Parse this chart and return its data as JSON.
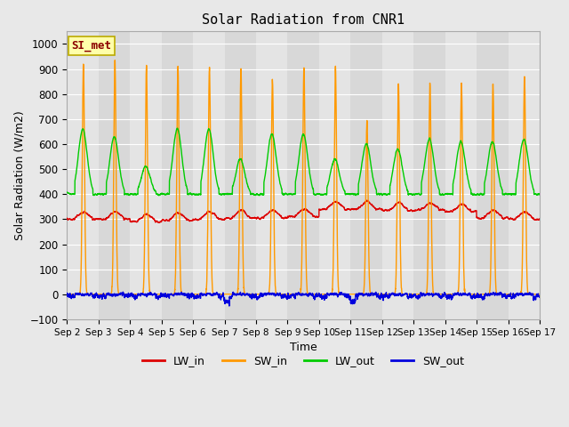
{
  "title": "Solar Radiation from CNR1",
  "xlabel": "Time",
  "ylabel": "Solar Radiation (W/m2)",
  "ylim": [
    -100,
    1050
  ],
  "n_days": 15,
  "background_color": "#e8e8e8",
  "plot_bg_color": "#e0e0e0",
  "alt_band_color": "#d0d0d0",
  "grid_color": "#ffffff",
  "series": {
    "LW_in": {
      "color": "#dd0000"
    },
    "SW_in": {
      "color": "#ff9900"
    },
    "LW_out": {
      "color": "#00cc00"
    },
    "SW_out": {
      "color": "#0000dd"
    }
  },
  "watermark": "SI_met",
  "watermark_color": "#8b0000",
  "watermark_bg": "#ffffaa",
  "tick_labels": [
    "Sep 2",
    "Sep 3",
    "Sep 4",
    "Sep 5",
    "Sep 6",
    "Sep 7",
    "Sep 8",
    "Sep 9",
    "Sep 10",
    "Sep 11",
    "Sep 12",
    "Sep 13",
    "Sep 14",
    "Sep 15",
    "Sep 16",
    "Sep 17"
  ],
  "points_per_day": 288,
  "figsize": [
    6.4,
    4.8
  ],
  "dpi": 100
}
